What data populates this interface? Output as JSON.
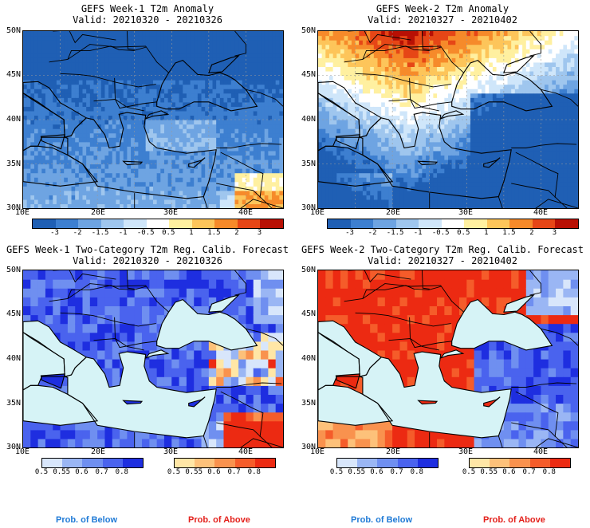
{
  "panels": [
    {
      "title": "GEFS Week-1 T2m Anomaly",
      "valid": "Valid: 20210320 - 20210326",
      "type": "anomaly",
      "mood": "cold"
    },
    {
      "title": "GEFS Week-2 T2m Anomaly",
      "valid": "Valid: 20210327 - 20210402",
      "type": "anomaly",
      "mood": "warm"
    },
    {
      "title": "GEFS Week-1 Two-Category T2m Reg. Calib. Forecast",
      "valid": "Valid: 20210320 - 20210326",
      "type": "prob",
      "mood": "cold"
    },
    {
      "title": "GEFS Week-2 Two-Category T2m Reg. Calib. Forecast",
      "valid": "Valid: 20210327 - 20210402",
      "type": "prob",
      "mood": "warm"
    }
  ],
  "lat_labels": [
    "50N",
    "45N",
    "40N",
    "35N",
    "30N"
  ],
  "lon_labels": [
    "10E",
    "20E",
    "30E",
    "40E"
  ],
  "anomaly_scale": {
    "ticks": [
      "-3",
      "-2",
      "-1.5",
      "-1",
      "-0.5",
      "0.5",
      "1",
      "1.5",
      "2",
      "3"
    ],
    "colors": [
      "#1f5fb4",
      "#3d7fd0",
      "#6ea4e2",
      "#9fc6ee",
      "#cfe6fa",
      "#ffffff",
      "#fff0a0",
      "#fdc55a",
      "#f68a2a",
      "#e64616",
      "#b81004"
    ]
  },
  "prob_scale": {
    "ticks": [
      "0.5",
      "0.55",
      "0.6",
      "0.7",
      "0.8"
    ],
    "below_colors": [
      "#d8e6fb",
      "#9ab6f4",
      "#6f8ff0",
      "#4a63ee",
      "#1e2ee0"
    ],
    "above_colors": [
      "#ffe6a6",
      "#fdc17a",
      "#f9924e",
      "#f55c2a",
      "#ec2a12"
    ]
  },
  "footer": {
    "below_label": "Prob. of Below",
    "above_label": "Prob. of Above"
  },
  "colors": {
    "sea": "#d6f3f6",
    "below_label": "#1f7ad6",
    "above_label": "#e3201b"
  }
}
